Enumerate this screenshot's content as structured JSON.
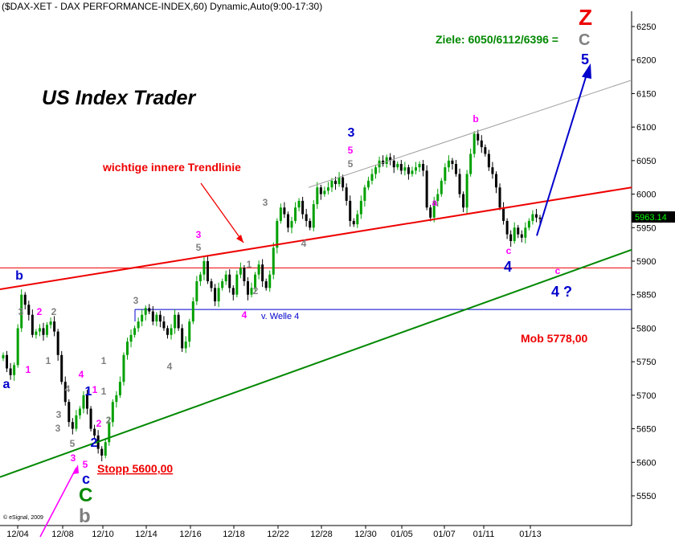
{
  "header": {
    "title": "($DAX-XET - DAX PERFORMANCE-INDEX,60) Dynamic,Auto(9:00-17:30)",
    "copyright": "© eSignal, 2009"
  },
  "chart_data": {
    "type": "candlestick",
    "yaxis": {
      "ticks": [
        5550,
        5600,
        5650,
        5700,
        5750,
        5800,
        5850,
        5900,
        5950,
        6000,
        6050,
        6100,
        6150,
        6200,
        6250
      ],
      "min": 5500,
      "max": 6280
    },
    "xaxis": {
      "ticks": [
        "12/04",
        "12/08",
        "12/10",
        "12/14",
        "12/16",
        "12/18",
        "12/22",
        "12/28",
        "12/30",
        "01/05",
        "01/07",
        "01/11",
        "01/13"
      ]
    },
    "last_price": "5963.14",
    "ohlc_close": [
      5760,
      5740,
      5730,
      5745,
      5800,
      5850,
      5835,
      5820,
      5790,
      5795,
      5800,
      5790,
      5805,
      5810,
      5795,
      5760,
      5720,
      5690,
      5660,
      5650,
      5670,
      5680,
      5700,
      5680,
      5650,
      5640,
      5620,
      5610,
      5630,
      5660,
      5690,
      5700,
      5720,
      5760,
      5780,
      5790,
      5800,
      5810,
      5820,
      5830,
      5825,
      5810,
      5820,
      5810,
      5800,
      5790,
      5800,
      5820,
      5800,
      5770,
      5780,
      5810,
      5840,
      5870,
      5880,
      5900,
      5870,
      5860,
      5840,
      5860,
      5870,
      5880,
      5860,
      5850,
      5880,
      5890,
      5870,
      5850,
      5860,
      5880,
      5895,
      5870,
      5860,
      5880,
      5920,
      5960,
      5980,
      5970,
      5950,
      5960,
      5980,
      5990,
      5970,
      5960,
      5950,
      5985,
      6010,
      6000,
      6005,
      6010,
      6020,
      6015,
      6025,
      6010,
      5990,
      5960,
      5955,
      5970,
      5990,
      6010,
      6020,
      6030,
      6040,
      6050,
      6045,
      6055,
      6050,
      6040,
      6045,
      6035,
      6040,
      6030,
      6035,
      6040,
      6045,
      6035,
      5980,
      5965,
      5990,
      6000,
      6020,
      6040,
      6050,
      6045,
      6030,
      6000,
      5980,
      6030,
      6060,
      6090,
      6080,
      6070,
      6060,
      6040,
      6030,
      6010,
      5980,
      5960,
      5940,
      5930,
      5950,
      5940,
      5935,
      5950,
      5960,
      5970,
      5965,
      5963
    ],
    "series": [
      {
        "role": "red trend line",
        "points": [
          [
            "12/04",
            5858
          ],
          [
            "01/13 end",
            6010
          ]
        ]
      },
      {
        "role": "grey upper channel",
        "points": [
          [
            "12/22",
            6010
          ],
          [
            "01/13 end",
            6170
          ]
        ]
      },
      {
        "role": "green lower trend line",
        "points": [
          [
            "start",
            5578
          ],
          [
            "01/13 end",
            5917
          ]
        ]
      },
      {
        "role": "horizontal resistance",
        "level": 5890
      },
      {
        "role": "horizontal support",
        "level": 5828
      },
      {
        "role": "blue projection",
        "points": [
          [
            "01/13",
            5938
          ],
          [
            "end",
            6190
          ]
        ]
      }
    ],
    "annotations": [
      {
        "text": "US Index Trader"
      },
      {
        "text": "wichtige innere Trendlinie"
      },
      {
        "text": "Ziele: 6050/6112/6396 = "
      },
      {
        "text": "C"
      },
      {
        "text": "Z"
      },
      {
        "text": "5"
      },
      {
        "text": "Mob 5778,00"
      },
      {
        "text": "Stopp 5600,00"
      },
      {
        "text": "v. Welle 4"
      },
      {
        "text": "4 ?"
      },
      {
        "text": "c"
      },
      {
        "text": "3"
      },
      {
        "text": "4"
      },
      {
        "text": "a"
      },
      {
        "text": "b"
      },
      {
        "text": "1"
      },
      {
        "text": "2"
      },
      {
        "text": "C"
      },
      {
        "text": "b"
      }
    ]
  },
  "waves": [
    {
      "t": "a",
      "c": "#0000cc",
      "x": 8,
      "y": 483,
      "s": 16
    },
    {
      "t": "b",
      "c": "#0000cc",
      "x": 24,
      "y": 348,
      "s": 16
    },
    {
      "t": "1",
      "c": "#ff00ff",
      "x": 35,
      "y": 464,
      "s": 12
    },
    {
      "t": "2",
      "c": "#ff00ff",
      "x": 49,
      "y": 392,
      "s": 12
    },
    {
      "t": "3",
      "c": "#808080",
      "x": 26,
      "y": 392,
      "s": 12
    },
    {
      "t": "2",
      "c": "#808080",
      "x": 67,
      "y": 392,
      "s": 12
    },
    {
      "t": "1",
      "c": "#808080",
      "x": 60,
      "y": 453,
      "s": 12
    },
    {
      "t": "4",
      "c": "#808080",
      "x": 84,
      "y": 488,
      "s": 12
    },
    {
      "t": "3",
      "c": "#808080",
      "x": 73,
      "y": 520,
      "s": 12
    },
    {
      "t": "3",
      "c": "#808080",
      "x": 72,
      "y": 537,
      "s": 12
    },
    {
      "t": "5",
      "c": "#808080",
      "x": 90,
      "y": 556,
      "s": 12
    },
    {
      "t": "3",
      "c": "#ff00ff",
      "x": 91,
      "y": 574,
      "s": 12
    },
    {
      "t": "5",
      "c": "#ff00ff",
      "x": 106,
      "y": 582,
      "s": 12
    },
    {
      "t": "4",
      "c": "#ff00ff",
      "x": 101,
      "y": 470,
      "s": 12
    },
    {
      "t": "1",
      "c": "#ff00ff",
      "x": 118,
      "y": 489,
      "s": 12
    },
    {
      "t": "1",
      "c": "#0000cc",
      "x": 110,
      "y": 492,
      "s": 16
    },
    {
      "t": "1",
      "c": "#808080",
      "x": 129,
      "y": 453,
      "s": 12
    },
    {
      "t": "1",
      "c": "#808080",
      "x": 129,
      "y": 491,
      "s": 12
    },
    {
      "t": "2",
      "c": "#ff00ff",
      "x": 123,
      "y": 531,
      "s": 12
    },
    {
      "t": "2",
      "c": "#808080",
      "x": 135,
      "y": 527,
      "s": 12
    },
    {
      "t": "2",
      "c": "#0000cc",
      "x": 117,
      "y": 556,
      "s": 16
    },
    {
      "t": "3",
      "c": "#808080",
      "x": 169,
      "y": 378,
      "s": 12
    },
    {
      "t": "4",
      "c": "#808080",
      "x": 211,
      "y": 460,
      "s": 12
    },
    {
      "t": "3",
      "c": "#ff00ff",
      "x": 247,
      "y": 296,
      "s": 12
    },
    {
      "t": "5",
      "c": "#808080",
      "x": 247,
      "y": 312,
      "s": 12
    },
    {
      "t": "1",
      "c": "#808080",
      "x": 310,
      "y": 333,
      "s": 12
    },
    {
      "t": "2",
      "c": "#808080",
      "x": 318,
      "y": 366,
      "s": 12
    },
    {
      "t": "4",
      "c": "#ff00ff",
      "x": 304,
      "y": 396,
      "s": 12
    },
    {
      "t": "3",
      "c": "#808080",
      "x": 330,
      "y": 256,
      "s": 12
    },
    {
      "t": "4",
      "c": "#808080",
      "x": 378,
      "y": 307,
      "s": 12
    },
    {
      "t": "3",
      "c": "#0000cc",
      "x": 437,
      "y": 170,
      "s": 16
    },
    {
      "t": "5",
      "c": "#ff00ff",
      "x": 436,
      "y": 191,
      "s": 12
    },
    {
      "t": "5",
      "c": "#808080",
      "x": 436,
      "y": 208,
      "s": 12
    },
    {
      "t": "a",
      "c": "#ff00ff",
      "x": 541,
      "y": 256,
      "s": 12
    },
    {
      "t": "b",
      "c": "#ff00ff",
      "x": 592,
      "y": 152,
      "s": 12
    },
    {
      "t": "c",
      "c": "#ff00ff",
      "x": 633,
      "y": 316,
      "s": 12
    },
    {
      "t": "c",
      "c": "#ff00ff",
      "x": 694,
      "y": 341,
      "s": 12
    }
  ]
}
